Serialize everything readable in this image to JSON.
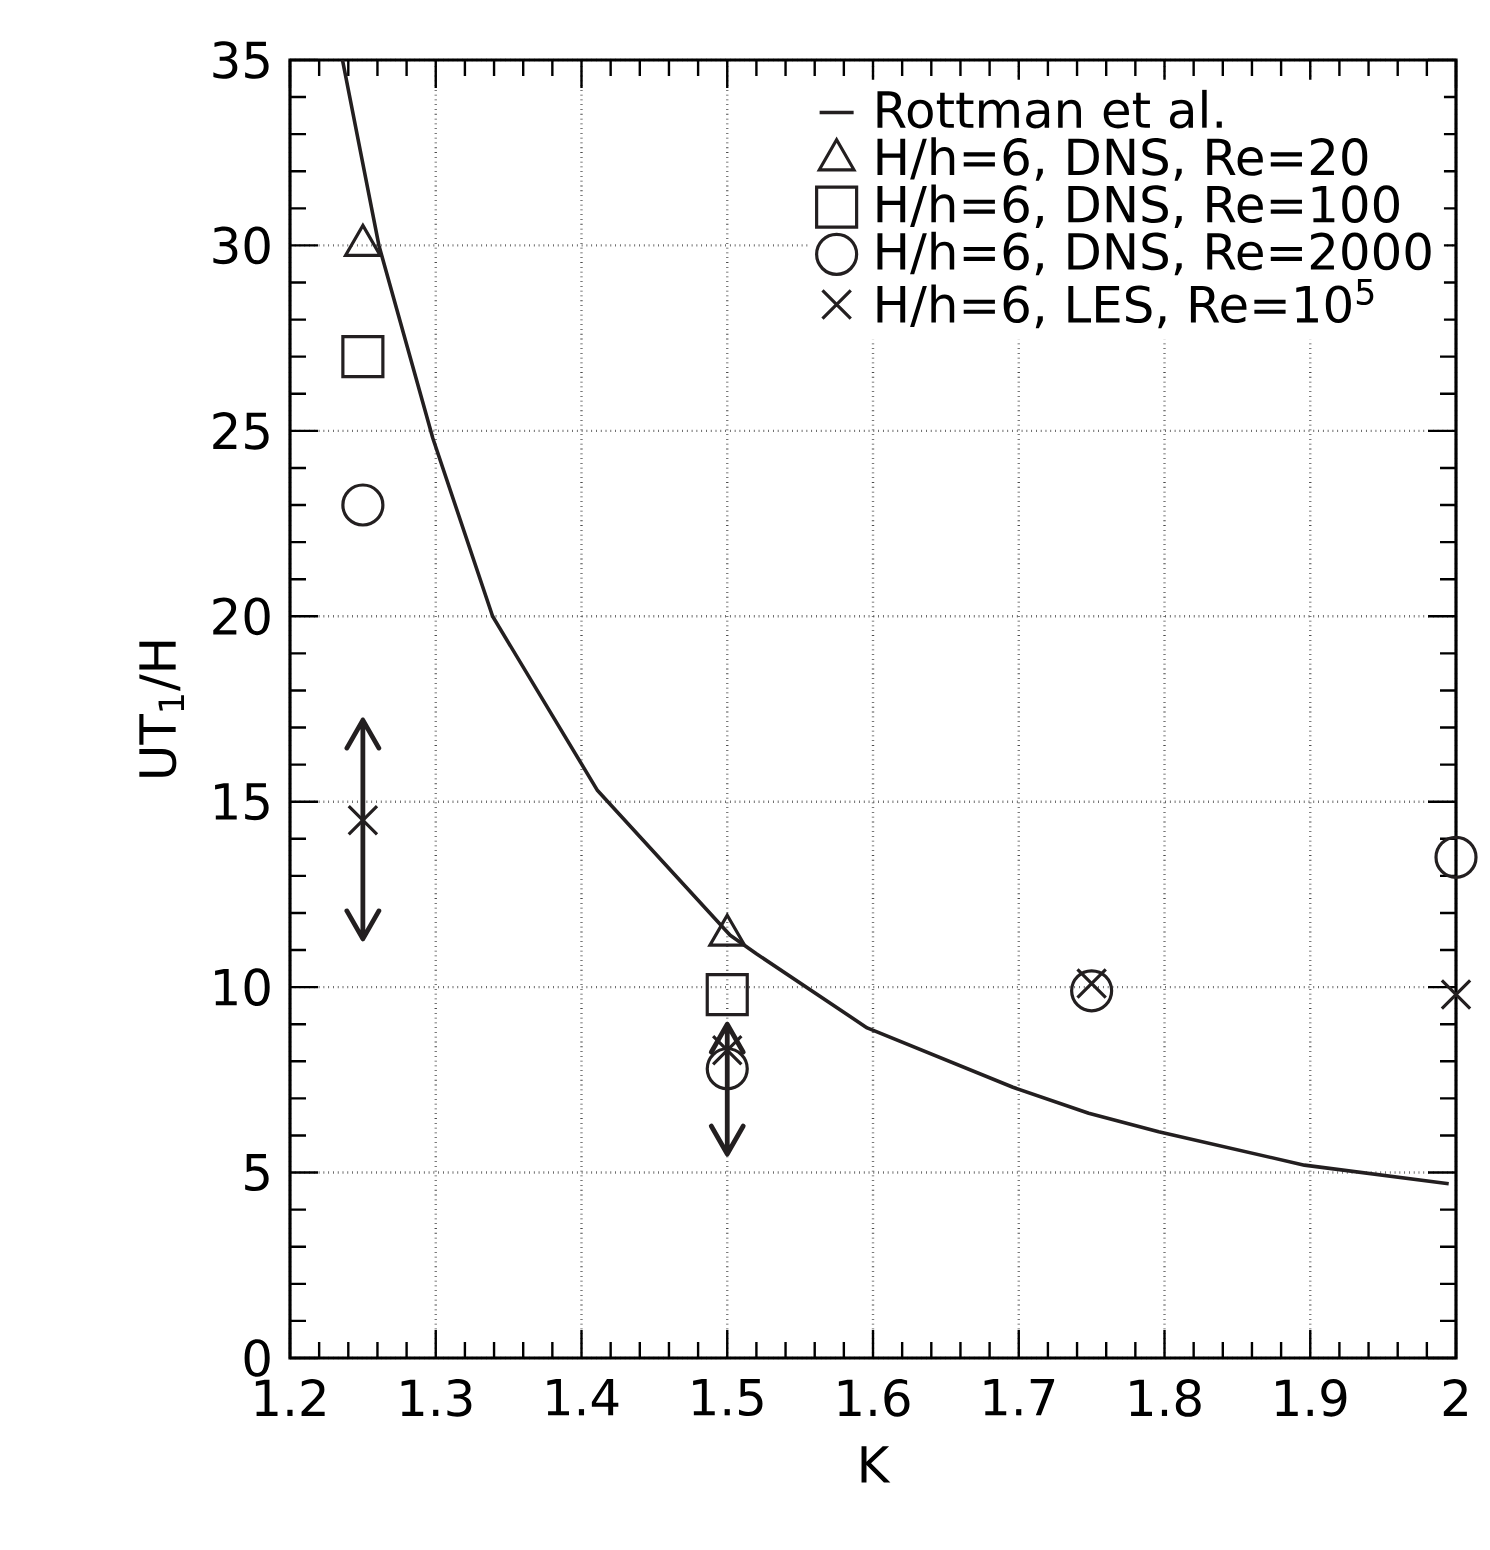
{
  "chart_data": {
    "type": "scatter",
    "xlabel": "K",
    "ylabel": "UT$_{1}$/H",
    "xlim": [
      1.2,
      2.0
    ],
    "ylim": [
      0,
      35
    ],
    "xticks": [
      1.2,
      1.3,
      1.4,
      1.5,
      1.6,
      1.7,
      1.8,
      1.9,
      2
    ],
    "yticks": [
      0,
      5,
      10,
      15,
      20,
      25,
      30,
      35
    ],
    "grid": true,
    "legend": "top right",
    "series": [
      {
        "name": "Rottman et al.",
        "type": "line",
        "color": "#231f20",
        "marker": "none",
        "line_style": "solid",
        "x": [
          1.236,
          1.261,
          1.298,
          1.339,
          1.411,
          1.502,
          1.52,
          1.596,
          1.696,
          1.748,
          1.796,
          1.896,
          1.995
        ],
        "values": [
          35,
          30,
          24.8,
          20,
          15.3,
          11.4,
          10.9,
          8.9,
          7.3,
          6.6,
          6.1,
          5.2,
          4.7
        ]
      },
      {
        "name": "H/h=6, DNS, Re=20",
        "color": "#231f20",
        "marker": "triangle",
        "x": [
          1.25,
          1.5
        ],
        "values": [
          30,
          11.4
        ]
      },
      {
        "name": "H/h=6, DNS, Re=100",
        "color": "#231f20",
        "marker": "square",
        "x": [
          1.25,
          1.5
        ],
        "values": [
          27,
          9.8
        ]
      },
      {
        "name": "H/h=6, DNS, Re=2000",
        "color": "#231f20",
        "marker": "circle",
        "x": [
          1.25,
          1.5,
          1.75,
          2.0
        ],
        "values": [
          23,
          7.8,
          9.9,
          13.5
        ]
      },
      {
        "name": "H/h=6, LES, Re=10$^{5}$",
        "color": "#231f20",
        "marker": "cross",
        "x": [
          1.25,
          1.5,
          1.75,
          2.0
        ],
        "values": [
          14.5,
          8.3,
          10.1,
          9.8
        ],
        "errors": [
          [
            11.3,
            17.2
          ],
          [
            5.5,
            9.0
          ],
          null,
          null
        ]
      }
    ]
  }
}
